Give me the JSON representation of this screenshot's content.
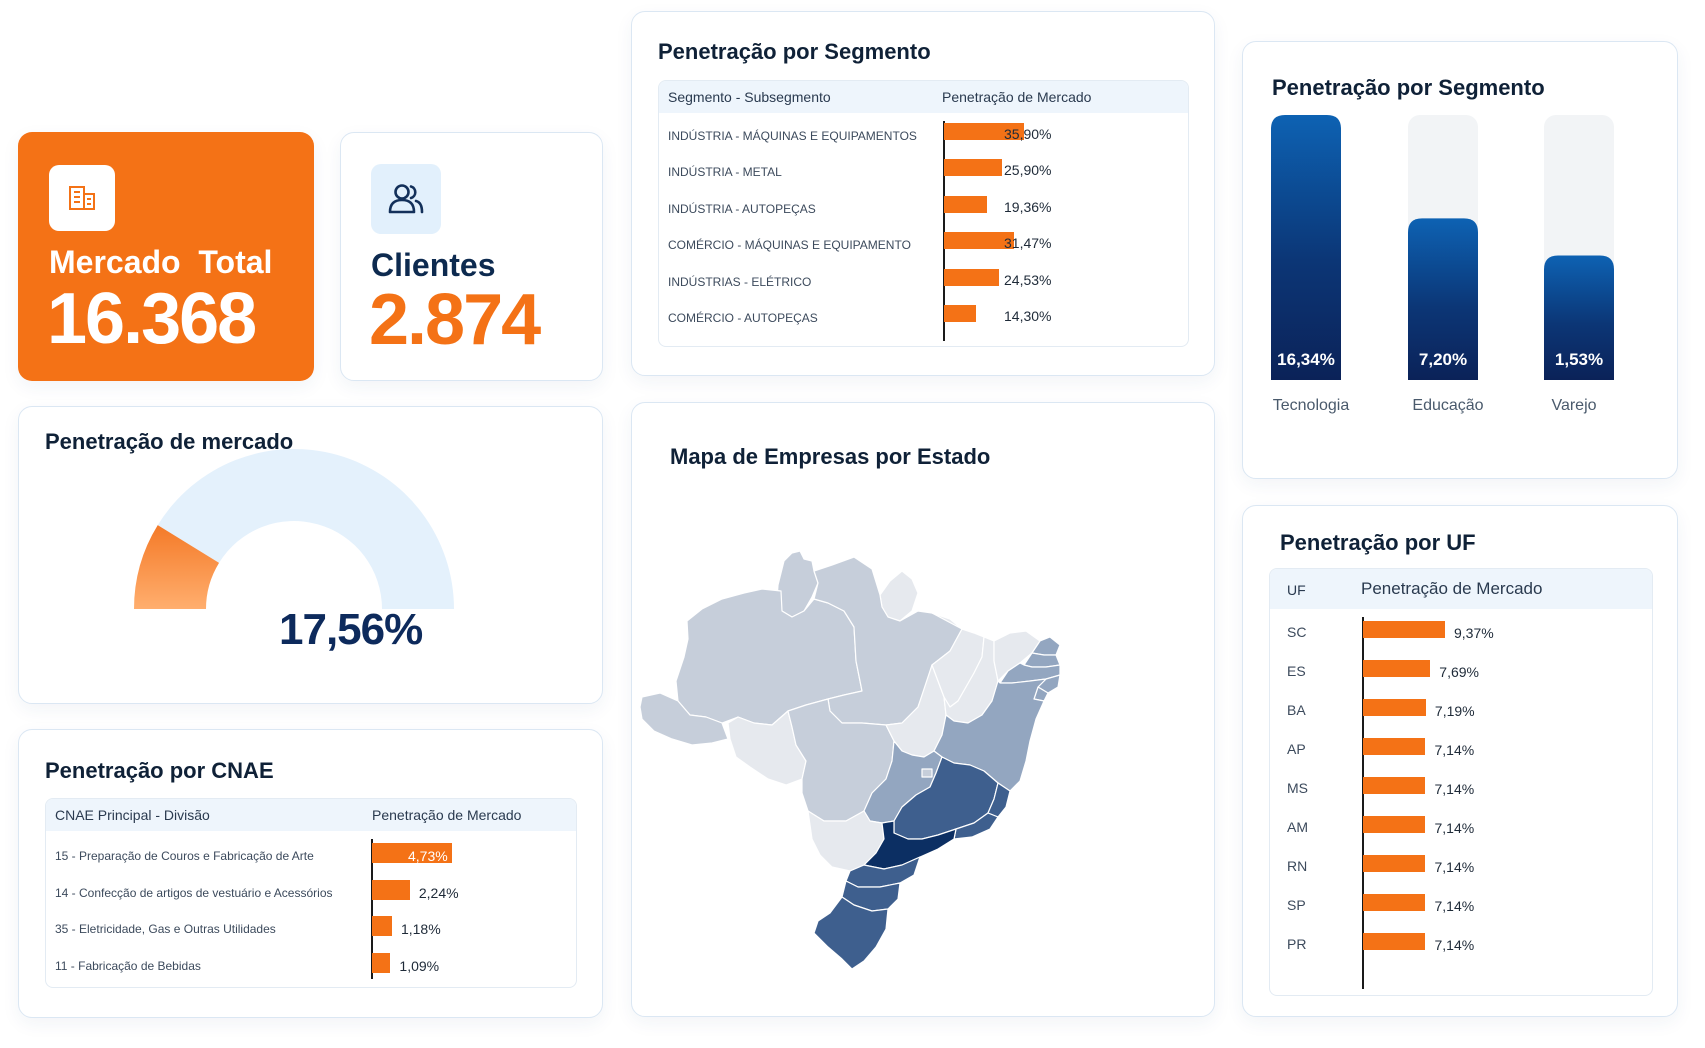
{
  "kpis": {
    "mercado_total": {
      "label": "Mercado  Total",
      "value": "16.368",
      "icon": "building-icon"
    },
    "clientes": {
      "label": "Clientes",
      "value": "2.874",
      "icon": "users-icon"
    }
  },
  "gauge": {
    "title": "Penetração de mercado",
    "value_label": "17,56%",
    "value": 17.56,
    "max": 100,
    "colors": {
      "fill": "#f47216",
      "fill_light": "#ffb070",
      "track": "#e4f1fc"
    }
  },
  "cnae": {
    "title": "Penetração por CNAE",
    "headers": [
      "CNAE Principal - Divisão",
      "Penetração de Mercado"
    ]
  },
  "segment_table": {
    "title": "Penetração por Segmento",
    "headers": [
      "Segmento -  Subsegmento",
      "Penetração de Mercado"
    ]
  },
  "map": {
    "title": "Mapa de Empresas por Estado",
    "colors": [
      "#e6e9ee",
      "#c6ceda",
      "#93a6c0",
      "#3e5f8e",
      "#0c2f63"
    ]
  },
  "segment_bars": {
    "title": "Penetração por Segmento"
  },
  "uf": {
    "title": "Penetração por UF",
    "headers": [
      "UF",
      "Penetração de Mercado"
    ]
  },
  "chart_data": [
    {
      "id": "cnae",
      "type": "bar",
      "orientation": "horizontal",
      "title": "Penetração por CNAE",
      "xlabel": "Penetração de Mercado",
      "categories": [
        "15 - Preparação de Couros e Fabricação de Arte",
        "14 - Confecção de artigos de vestuário e Acessórios",
        "35 - Eletricidade, Gas e Outras Utilidades",
        "11 - Fabricação de Bebidas"
      ],
      "values": [
        4.73,
        2.24,
        1.18,
        1.09
      ],
      "labels": [
        "4,73%",
        "2,24%",
        "1,18%",
        "1,09%"
      ],
      "xlim": [
        0,
        4.73
      ]
    },
    {
      "id": "segment_table",
      "type": "bar",
      "orientation": "horizontal",
      "title": "Penetração por Segmento",
      "xlabel": "Penetração de Mercado",
      "categories": [
        "INDÚSTRIA - MÁQUINAS E EQUIPAMENTOS",
        "INDÚSTRIA - METAL",
        "INDÚSTRIA - AUTOPEÇAS",
        "COMÉRCIO - MÁQUINAS E EQUIPAMENTO",
        "INDÚSTRIAS - ELÉTRICO",
        "COMÉRCIO - AUTOPEÇAS"
      ],
      "values": [
        35.9,
        25.9,
        19.36,
        31.47,
        24.53,
        14.3
      ],
      "labels": [
        "35,90%",
        "25,90%",
        "19,36%",
        "31,47%",
        "24,53%",
        "14,30%"
      ],
      "xlim": [
        0,
        35.9
      ]
    },
    {
      "id": "segment_bars",
      "type": "bar",
      "orientation": "vertical",
      "title": "Penetração por Segmento",
      "categories": [
        "Tecnologia",
        "Educação",
        "Varejo"
      ],
      "values": [
        16.34,
        7.2,
        1.53
      ],
      "labels": [
        "16,34%",
        "7,20%",
        "1,53%"
      ],
      "fill_fraction": [
        1.0,
        0.61,
        0.47
      ]
    },
    {
      "id": "uf",
      "type": "bar",
      "orientation": "horizontal",
      "title": "Penetração por UF",
      "xlabel": "Penetração de Mercado",
      "categories": [
        "SC",
        "ES",
        "BA",
        "AP",
        "MS",
        "AM",
        "RN",
        "SP",
        "PR"
      ],
      "values": [
        9.37,
        7.69,
        7.19,
        7.14,
        7.14,
        7.14,
        7.14,
        7.14,
        7.14
      ],
      "labels": [
        "9,37%",
        "7,69%",
        "7,19%",
        "7,14%",
        "7,14%",
        "7,14%",
        "7,14%",
        "7,14%",
        "7,14%"
      ],
      "xlim": [
        0,
        9.37
      ]
    },
    {
      "id": "map",
      "type": "heatmap",
      "title": "Mapa de Empresas por Estado",
      "regions": [
        {
          "name": "AM",
          "level": 1
        },
        {
          "name": "PA",
          "level": 1
        },
        {
          "name": "RR",
          "level": 1
        },
        {
          "name": "AP",
          "level": 0
        },
        {
          "name": "AC",
          "level": 1
        },
        {
          "name": "RO",
          "level": 0
        },
        {
          "name": "MT",
          "level": 1
        },
        {
          "name": "TO",
          "level": 0
        },
        {
          "name": "MA",
          "level": 0
        },
        {
          "name": "PI",
          "level": 0
        },
        {
          "name": "CE",
          "level": 0
        },
        {
          "name": "RN",
          "level": 2
        },
        {
          "name": "PB",
          "level": 2
        },
        {
          "name": "PE",
          "level": 2
        },
        {
          "name": "AL",
          "level": 2
        },
        {
          "name": "SE",
          "level": 2
        },
        {
          "name": "BA",
          "level": 2
        },
        {
          "name": "GO",
          "level": 2
        },
        {
          "name": "DF",
          "level": 1
        },
        {
          "name": "MS",
          "level": 0
        },
        {
          "name": "MG",
          "level": 3
        },
        {
          "name": "ES",
          "level": 3
        },
        {
          "name": "RJ",
          "level": 3
        },
        {
          "name": "SP",
          "level": 4
        },
        {
          "name": "PR",
          "level": 3
        },
        {
          "name": "SC",
          "level": 3
        },
        {
          "name": "RS",
          "level": 3
        }
      ]
    }
  ]
}
